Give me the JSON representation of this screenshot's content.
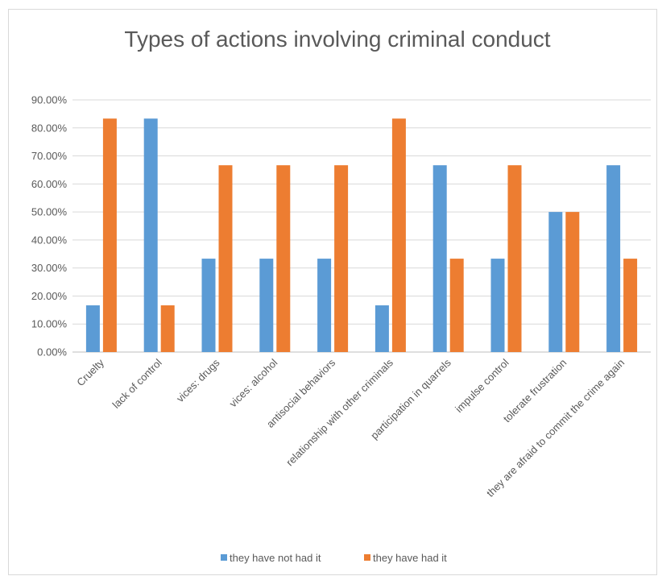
{
  "chart_data": {
    "type": "bar",
    "title": "Types of actions involving criminal conduct",
    "categories": [
      "Cruelty",
      "lack of control",
      "vices: drugs",
      "vices: alcohol",
      "antisocial behaviors",
      "relationship with other criminals",
      "participation in quarrels",
      "impulse control",
      "tolerate frustration",
      "they are afraid to commit the crime again"
    ],
    "series": [
      {
        "name": "they have not had it",
        "color": "#5b9bd5",
        "values": [
          16.67,
          83.33,
          33.33,
          33.33,
          33.33,
          16.67,
          66.67,
          33.33,
          50.0,
          66.67
        ]
      },
      {
        "name": "they have had it",
        "color": "#ed7d31",
        "values": [
          83.33,
          16.67,
          66.67,
          66.67,
          66.67,
          83.33,
          33.33,
          66.67,
          50.0,
          33.33
        ]
      }
    ],
    "ylim": [
      0,
      90
    ],
    "yticks": [
      "0.00%",
      "10.00%",
      "20.00%",
      "30.00%",
      "40.00%",
      "50.00%",
      "60.00%",
      "70.00%",
      "80.00%",
      "90.00%"
    ],
    "grid": true,
    "legend": "bottom"
  }
}
